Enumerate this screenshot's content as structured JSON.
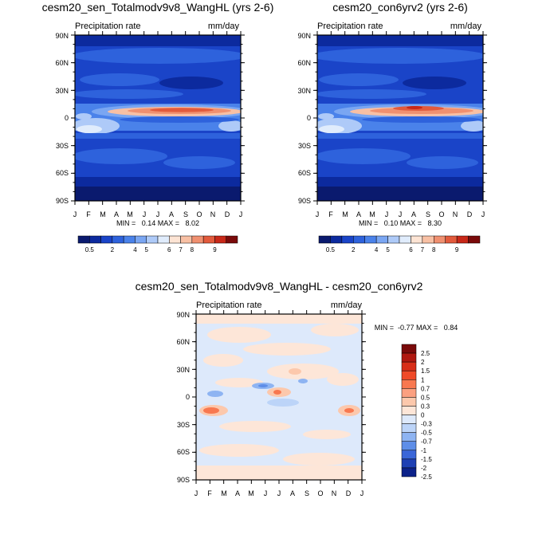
{
  "panels": [
    {
      "title": "cesm20_sen_Totalmodv9v8_WangHL (yrs 2-6)",
      "left_label": "Precipitation rate",
      "right_label": "mm/day",
      "stats": "MIN =   0.14 MAX =   8.02",
      "colorbar_ticks": [
        "0.5",
        "2",
        "4",
        "5",
        "6",
        "7",
        "8",
        "9"
      ]
    },
    {
      "title": "cesm20_con6yrv2 (yrs 2-6)",
      "left_label": "Precipitation rate",
      "right_label": "mm/day",
      "stats": "MIN =   0.10 MAX =   8.30",
      "colorbar_ticks": [
        "0.5",
        "2",
        "4",
        "5",
        "6",
        "7",
        "8",
        "9"
      ]
    },
    {
      "title": "cesm20_sen_Totalmodv9v8_WangHL - cesm20_con6yrv2",
      "left_label": "Precipitation rate",
      "right_label": "mm/day",
      "stats": "MIN =  -0.77 MAX =   0.84",
      "colorbar_ticks": [
        "2.5",
        "2",
        "1.5",
        "1",
        "0.7",
        "0.5",
        "0.3",
        "0",
        "-0.3",
        "-0.5",
        "-0.7",
        "-1",
        "-1.5",
        "-2",
        "-2.5"
      ]
    }
  ],
  "chart_data": [
    {
      "type": "heatmap",
      "title": "cesm20_sen_Totalmodv9v8_WangHL (yrs 2-6)",
      "xlabel": "",
      "ylabel": "",
      "x_ticks": [
        "J",
        "F",
        "M",
        "A",
        "M",
        "J",
        "J",
        "A",
        "S",
        "O",
        "N",
        "D",
        "J"
      ],
      "y_ticks": [
        "90N",
        "60N",
        "30N",
        "0",
        "30S",
        "60S",
        "90S"
      ],
      "units": "mm/day",
      "min": 0.14,
      "max": 8.02,
      "colorbar_levels": [
        0.5,
        2,
        4,
        5,
        6,
        7,
        8,
        9
      ]
    },
    {
      "type": "heatmap",
      "title": "cesm20_con6yrv2 (yrs 2-6)",
      "xlabel": "",
      "ylabel": "",
      "x_ticks": [
        "J",
        "F",
        "M",
        "A",
        "M",
        "J",
        "J",
        "A",
        "S",
        "O",
        "N",
        "D",
        "J"
      ],
      "y_ticks": [
        "90N",
        "60N",
        "30N",
        "0",
        "30S",
        "60S",
        "90S"
      ],
      "units": "mm/day",
      "min": 0.1,
      "max": 8.3,
      "colorbar_levels": [
        0.5,
        2,
        4,
        5,
        6,
        7,
        8,
        9
      ]
    },
    {
      "type": "heatmap",
      "title": "cesm20_sen_Totalmodv9v8_WangHL - cesm20_con6yrv2",
      "xlabel": "",
      "ylabel": "",
      "x_ticks": [
        "J",
        "F",
        "M",
        "A",
        "M",
        "J",
        "J",
        "A",
        "S",
        "O",
        "N",
        "D",
        "J"
      ],
      "y_ticks": [
        "90N",
        "60N",
        "30N",
        "0",
        "30S",
        "60S",
        "90S"
      ],
      "units": "mm/day",
      "min": -0.77,
      "max": 0.84,
      "colorbar_levels": [
        2.5,
        2,
        1.5,
        1,
        0.7,
        0.5,
        0.3,
        0,
        -0.3,
        -0.5,
        -0.7,
        -1,
        -1.5,
        -2,
        -2.5
      ]
    }
  ],
  "colors": {
    "abs_scale": [
      "#0a1a6e",
      "#0c2a9e",
      "#1a44c8",
      "#2e62dc",
      "#4a82ea",
      "#7aa6f2",
      "#aecaf8",
      "#e0ecfc",
      "#fde4d4",
      "#f8c0a4",
      "#f09070",
      "#e25a3c",
      "#c82818",
      "#7a0a0a"
    ],
    "diff_scale": [
      "#7a0a0a",
      "#b01810",
      "#d82e18",
      "#f04a28",
      "#f87850",
      "#fba080",
      "#fcc8ac",
      "#fde6d8",
      "#dde9fb",
      "#bcd4f8",
      "#8eb4f2",
      "#5e8ee8",
      "#3a66d8",
      "#1e40b4",
      "#0c228a"
    ]
  }
}
